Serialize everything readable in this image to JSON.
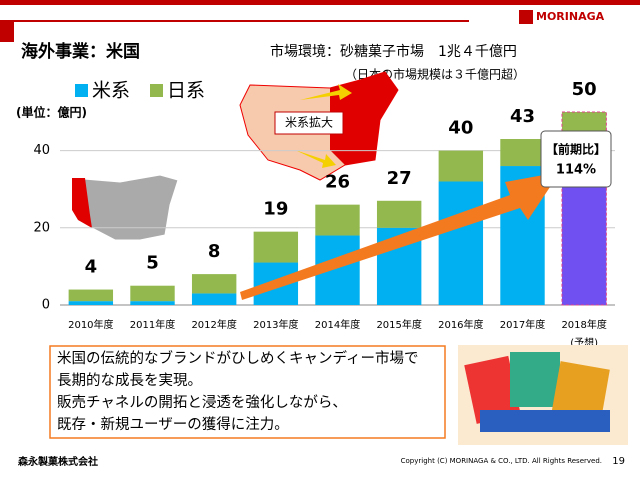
{
  "header": {
    "title": "海外事業：米国",
    "brand": "MORINAGA",
    "market": "市場環境：砂糖菓子市場　1兆４千億円",
    "market_note": "（日本の市場規模は３千億円超）"
  },
  "chart_data": {
    "type": "bar",
    "stacked": true,
    "unit_label": "(単位：億円)",
    "categories": [
      "2010年度",
      "2011年度",
      "2012年度",
      "2013年度",
      "2014年度",
      "2015年度",
      "2016年度",
      "2017年度",
      "2018年度"
    ],
    "category_note": "(予想)",
    "series": [
      {
        "name": "米系",
        "color": "#00b0f0",
        "values": [
          1,
          1,
          3,
          11,
          18,
          20,
          32,
          36,
          45
        ]
      },
      {
        "name": "日系",
        "color": "#92b84e",
        "values": [
          3,
          4,
          5,
          8,
          8,
          7,
          8,
          7,
          5
        ]
      }
    ],
    "forecast_color": "#7050f0",
    "totals": [
      4,
      5,
      8,
      19,
      26,
      27,
      40,
      43,
      50
    ],
    "ylim": [
      0,
      50
    ],
    "yticks": [
      0,
      20,
      40
    ],
    "grid": true,
    "map_label": "米系拡大",
    "growth_title": "【前期比】",
    "growth_value": "114%"
  },
  "body": {
    "lines": [
      "米国の伝統的なブランドがひしめくキャンディー市場で",
      "長期的な成長を実現。",
      "販売チャネルの開拓と浸透を強化しながら、",
      "既存・新規ユーザーの獲得に注力。"
    ]
  },
  "footer": {
    "company": "森永製菓株式会社",
    "copyright": "Copyright (C) MORINAGA & CO., LTD. All Rights Reserved.",
    "page": "19"
  }
}
